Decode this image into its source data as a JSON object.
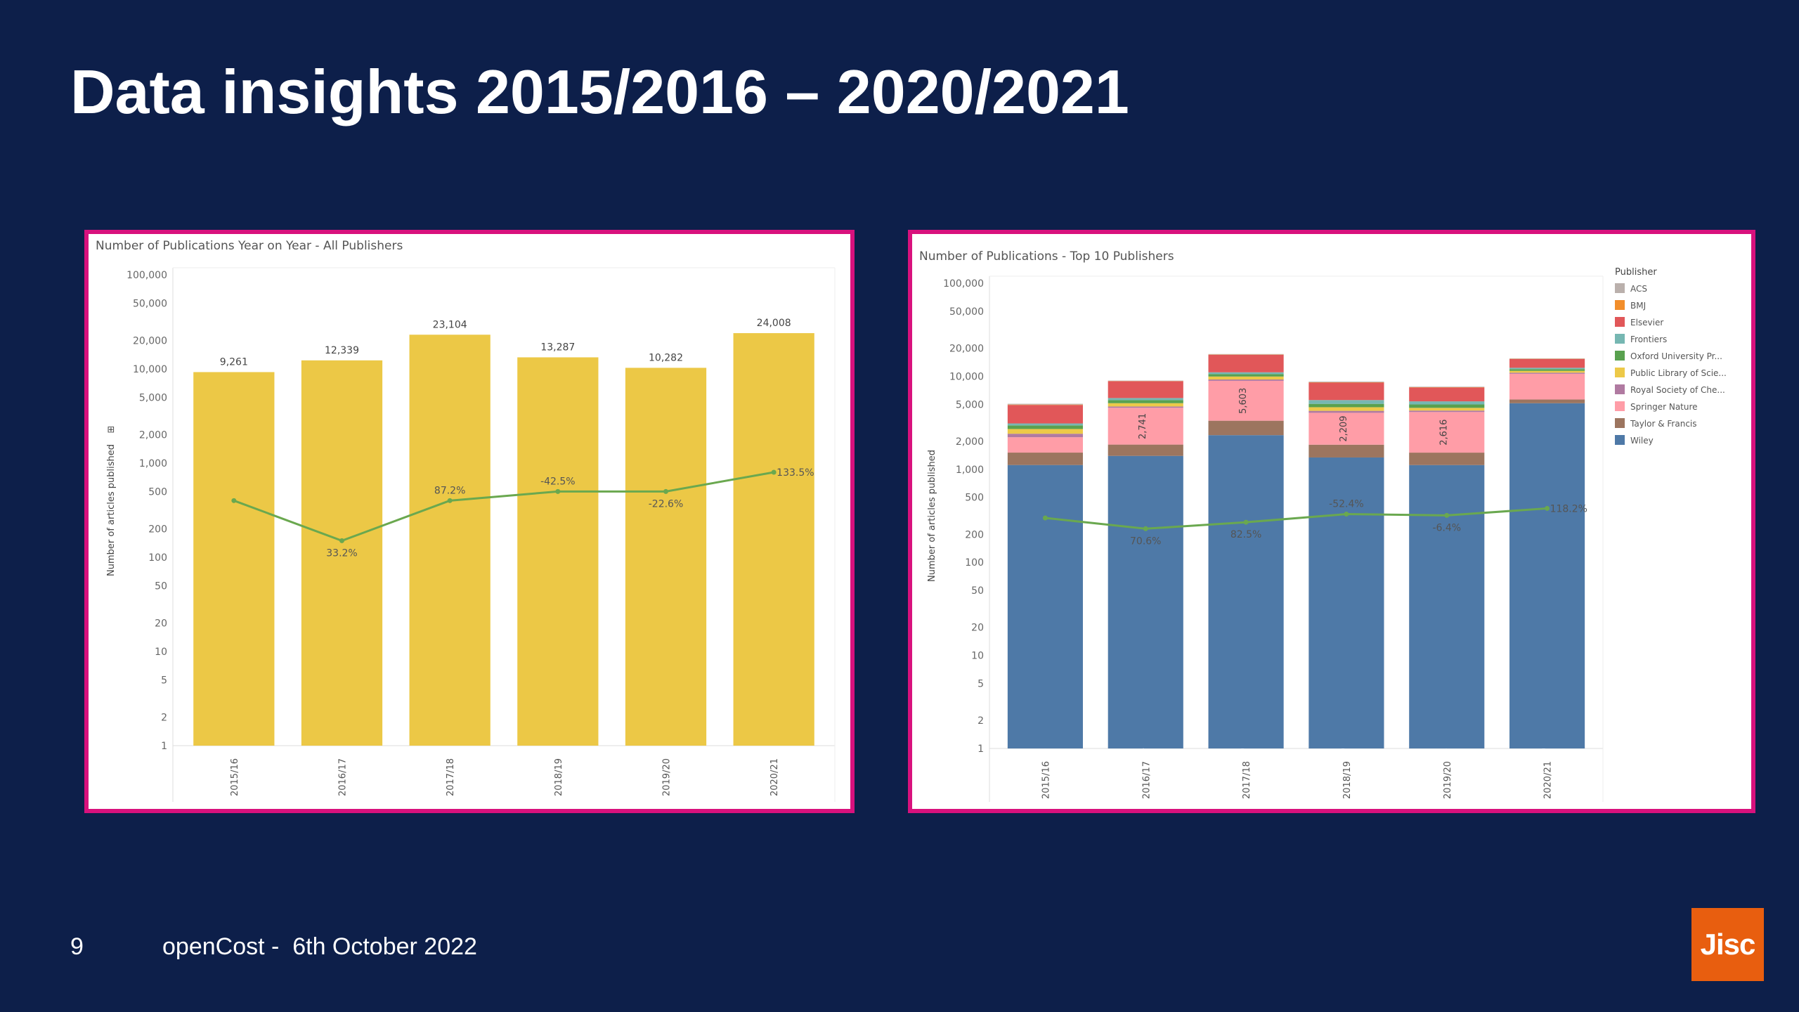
{
  "slide": {
    "title": "Data insights 2015/2016 – 2020/2021",
    "page_number": "9",
    "footer": "openCost -  6th October 2022",
    "logo_text": "Jisc"
  },
  "colors": {
    "background": "#0d1f4a",
    "panel_border": "#d8117d",
    "bar_yellow": "#ecc846",
    "line_green": "#6aa84f",
    "logo_orange": "#e85e0f"
  },
  "chart_data": [
    {
      "type": "bar",
      "title": "Number of Publications Year on Year - All Publishers",
      "ylabel": "Number of articles published",
      "ylabel_marker": "⊞",
      "yscale": "log",
      "ylim": [
        1,
        100000
      ],
      "yticks": [
        1,
        2,
        5,
        10,
        20,
        50,
        100,
        200,
        500,
        1000,
        2000,
        5000,
        10000,
        20000,
        50000,
        100000
      ],
      "ytick_labels": [
        "1",
        "2",
        "5",
        "10",
        "20",
        "50",
        "100",
        "200",
        "500",
        "1,000",
        "2,000",
        "5,000",
        "10,000",
        "20,000",
        "50,000",
        "100,000"
      ],
      "categories": [
        "2015/16",
        "2016/17",
        "2017/18",
        "2018/19",
        "2019/20",
        "2020/21"
      ],
      "values": [
        9261,
        12339,
        23104,
        13287,
        10282,
        24008
      ],
      "value_labels": [
        "9,261",
        "12,339",
        "23,104",
        "13,287",
        "10,282",
        "24,008"
      ],
      "line": {
        "values": [
          400,
          150,
          400,
          500,
          500,
          800
        ],
        "labels": [
          "",
          "33.2%",
          "87.2%",
          "-42.5%",
          "-22.6%",
          "133.5%"
        ],
        "label_side": [
          "",
          "below",
          "above",
          "above",
          "below",
          "right"
        ]
      },
      "grid": true
    },
    {
      "type": "bar",
      "stacked": true,
      "title": "Number of Publications - Top 10 Publishers",
      "ylabel": "Number of articles published",
      "yscale": "log",
      "ylim": [
        1,
        100000
      ],
      "yticks": [
        1,
        2,
        5,
        10,
        20,
        50,
        100,
        200,
        500,
        1000,
        2000,
        5000,
        10000,
        20000,
        50000,
        100000
      ],
      "ytick_labels": [
        "1",
        "2",
        "5",
        "10",
        "20",
        "50",
        "100",
        "200",
        "500",
        "1,000",
        "2,000",
        "5,000",
        "10,000",
        "20,000",
        "50,000",
        "100,000"
      ],
      "categories": [
        "2015/16",
        "2016/17",
        "2017/18",
        "2018/19",
        "2019/20",
        "2020/21"
      ],
      "legend_title": "Publisher",
      "legend_position": "right",
      "series": [
        {
          "name": "Wiley",
          "color": "#4e79a7",
          "values": [
            1112,
            1394,
            2329,
            1340,
            1111,
            5130
          ],
          "labels": [
            "1,112",
            "1,394",
            "2,329",
            "1,340",
            "1,111",
            "5,130"
          ]
        },
        {
          "name": "Taylor & Francis",
          "color": "#9c755f",
          "values": [
            400,
            450,
            1000,
            500,
            400,
            500
          ]
        },
        {
          "name": "Springer Nature",
          "color": "#ff9da7",
          "values": [
            700,
            2741,
            5603,
            2209,
            2616,
            5000
          ],
          "labels": [
            "",
            "2,741",
            "5,603",
            "2,209",
            "2,616",
            ""
          ]
        },
        {
          "name": "Royal Society of Che...",
          "color": "#b07aa1",
          "values": [
            200,
            150,
            300,
            200,
            150,
            300
          ]
        },
        {
          "name": "Public Library of Scie...",
          "color": "#edc948",
          "values": [
            300,
            400,
            700,
            400,
            300,
            500
          ]
        },
        {
          "name": "Oxford University Pr...",
          "color": "#59a14f",
          "values": [
            250,
            400,
            600,
            400,
            400,
            500
          ]
        },
        {
          "name": "Frontiers",
          "color": "#76b7b2",
          "values": [
            150,
            300,
            500,
            500,
            400,
            400
          ]
        },
        {
          "name": "Elsevier",
          "color": "#e15759",
          "values": [
            1800,
            3000,
            6000,
            3000,
            2200,
            3000
          ]
        },
        {
          "name": "BMJ",
          "color": "#f28e2b",
          "values": [
            50,
            50,
            100,
            60,
            50,
            80
          ]
        },
        {
          "name": "ACS",
          "color": "#bab0ac",
          "values": [
            100,
            100,
            200,
            150,
            100,
            150
          ]
        }
      ],
      "line": {
        "values": [
          300,
          230,
          270,
          330,
          320,
          380
        ],
        "labels": [
          "",
          "70.6%",
          "82.5%",
          "-52.4%",
          "-6.4%",
          "118.2%"
        ],
        "label_side": [
          "",
          "below",
          "below",
          "above",
          "below",
          "right"
        ]
      },
      "grid": true
    }
  ]
}
